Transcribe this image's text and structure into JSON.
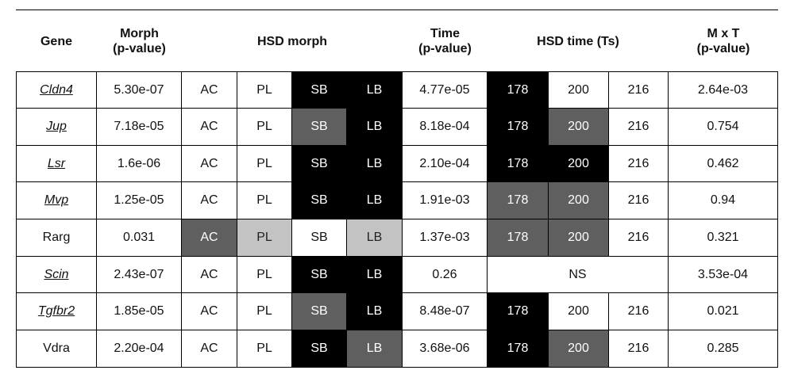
{
  "header": {
    "gene": "Gene",
    "morph": [
      "Morph",
      "(p-value)"
    ],
    "hsd_morph": "HSD morph",
    "time": [
      "Time",
      "(p-value)"
    ],
    "hsd_time": "HSD time (Ts)",
    "mxt": [
      "M x T",
      "(p-value)"
    ]
  },
  "rows": [
    {
      "gene": "Cldn4",
      "gene_style": "italic-underline",
      "morph_p": "5.30e-07",
      "hsd_morph": [
        [
          "AC",
          "white"
        ],
        [
          "PL",
          "white"
        ],
        [
          "SB",
          "black"
        ],
        [
          "LB",
          "black"
        ]
      ],
      "time_p": "4.77e-05",
      "hsd_time": [
        [
          "178",
          "black"
        ],
        [
          "200",
          "white"
        ],
        [
          "216",
          "white"
        ]
      ],
      "mxt_p": "2.64e-03"
    },
    {
      "gene": "Jup",
      "gene_style": "italic-underline",
      "morph_p": "7.18e-05",
      "hsd_morph": [
        [
          "AC",
          "white"
        ],
        [
          "PL",
          "white"
        ],
        [
          "SB",
          "dark"
        ],
        [
          "LB",
          "black"
        ]
      ],
      "time_p": "8.18e-04",
      "hsd_time": [
        [
          "178",
          "black"
        ],
        [
          "200",
          "dark"
        ],
        [
          "216",
          "white"
        ]
      ],
      "mxt_p": "0.754"
    },
    {
      "gene": "Lsr",
      "gene_style": "italic-underline",
      "morph_p": "1.6e-06",
      "hsd_morph": [
        [
          "AC",
          "white"
        ],
        [
          "PL",
          "white"
        ],
        [
          "SB",
          "black"
        ],
        [
          "LB",
          "black"
        ]
      ],
      "time_p": "2.10e-04",
      "hsd_time": [
        [
          "178",
          "black"
        ],
        [
          "200",
          "black"
        ],
        [
          "216",
          "white"
        ]
      ],
      "mxt_p": "0.462"
    },
    {
      "gene": "Mvp",
      "gene_style": "italic-underline",
      "morph_p": "1.25e-05",
      "hsd_morph": [
        [
          "AC",
          "white"
        ],
        [
          "PL",
          "white"
        ],
        [
          "SB",
          "black"
        ],
        [
          "LB",
          "black"
        ]
      ],
      "time_p": "1.91e-03",
      "hsd_time": [
        [
          "178",
          "dark"
        ],
        [
          "200",
          "dark"
        ],
        [
          "216",
          "white"
        ]
      ],
      "mxt_p": "0.94"
    },
    {
      "gene": "Rarg",
      "gene_style": "plain",
      "morph_p": "0.031",
      "hsd_morph": [
        [
          "AC",
          "dark"
        ],
        [
          "PL",
          "light"
        ],
        [
          "SB",
          "white"
        ],
        [
          "LB",
          "light"
        ]
      ],
      "time_p": "1.37e-03",
      "hsd_time": [
        [
          "178",
          "dark"
        ],
        [
          "200",
          "dark"
        ],
        [
          "216",
          "white"
        ]
      ],
      "mxt_p": "0.321"
    },
    {
      "gene": "Scin",
      "gene_style": "italic-underline",
      "morph_p": "2.43e-07",
      "hsd_morph": [
        [
          "AC",
          "white"
        ],
        [
          "PL",
          "white"
        ],
        [
          "SB",
          "black"
        ],
        [
          "LB",
          "black"
        ]
      ],
      "time_p": "0.26",
      "hsd_time_merged": "NS",
      "mxt_p": "3.53e-04"
    },
    {
      "gene": "Tgfbr2",
      "gene_style": "italic-underline",
      "morph_p": "1.85e-05",
      "hsd_morph": [
        [
          "AC",
          "white"
        ],
        [
          "PL",
          "white"
        ],
        [
          "SB",
          "dark"
        ],
        [
          "LB",
          "black"
        ]
      ],
      "time_p": "8.48e-07",
      "hsd_time": [
        [
          "178",
          "black"
        ],
        [
          "200",
          "white"
        ],
        [
          "216",
          "white"
        ]
      ],
      "mxt_p": "0.021"
    },
    {
      "gene": "Vdra",
      "gene_style": "plain",
      "morph_p": "2.20e-04",
      "hsd_morph": [
        [
          "AC",
          "white"
        ],
        [
          "PL",
          "white"
        ],
        [
          "SB",
          "black"
        ],
        [
          "LB",
          "dark"
        ]
      ],
      "time_p": "3.68e-06",
      "hsd_time": [
        [
          "178",
          "black"
        ],
        [
          "200",
          "dark"
        ],
        [
          "216",
          "white"
        ]
      ],
      "mxt_p": "0.285"
    }
  ]
}
